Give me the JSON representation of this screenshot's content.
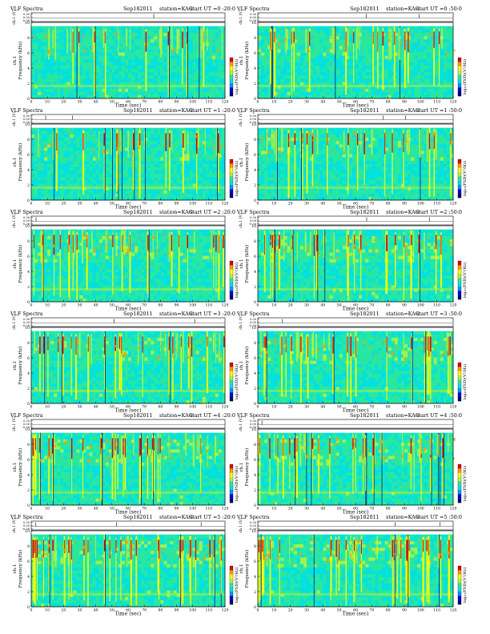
{
  "page": {
    "columns": 2,
    "rows": 6
  },
  "colormap": [
    "#00007a",
    "#0000e0",
    "#0096ff",
    "#00e0e0",
    "#2ce89a",
    "#b8f23a",
    "#ffff00",
    "#ff9a00",
    "#e00000"
  ],
  "common": {
    "label": "VLF Spectra",
    "date": "Sep182011",
    "station": "station=KAG",
    "start_prefix": "start",
    "channel_label": "ch.1",
    "channel_unit": "(V)",
    "ylabel": "Frequency (kHz)",
    "xlabel": "Time (sec)",
    "colorbar_label": "log₁₀(PSD)(V²/Hz)"
  },
  "chart_data": [
    {
      "type": "heatmap",
      "title_ut": "UT =0 :20:0",
      "x_ticks": [
        "0",
        "10",
        "20",
        "30",
        "40",
        "50",
        "60",
        "70",
        "80",
        "90",
        "100",
        "110",
        "120"
      ],
      "y_ticks": [
        "0",
        "2",
        "4",
        "6",
        "8",
        "10"
      ],
      "xlim": [
        0,
        120
      ],
      "ylim": [
        0,
        10
      ],
      "wave_ticks": [
        "0.30",
        "0.00",
        "-0.30"
      ],
      "wave_ylim": [
        -0.3,
        0.3
      ],
      "intensity": 0.35
    },
    {
      "type": "heatmap",
      "title_ut": "UT =0 :50:0",
      "x_ticks": [
        "0",
        "10",
        "20",
        "30",
        "40",
        "50",
        "60",
        "70",
        "80",
        "90",
        "100",
        "110",
        "120"
      ],
      "y_ticks": [
        "0",
        "2",
        "4",
        "6",
        "8",
        "10"
      ],
      "xlim": [
        0,
        120
      ],
      "ylim": [
        0,
        10
      ],
      "wave_ticks": [
        "0.30",
        "0.00",
        "-0.30"
      ],
      "wave_ylim": [
        -0.3,
        0.3
      ],
      "intensity": 0.45
    },
    {
      "type": "heatmap",
      "title_ut": "UT =1 :20:0",
      "x_ticks": [
        "0",
        "10",
        "20",
        "30",
        "40",
        "50",
        "60",
        "70",
        "80",
        "90",
        "100",
        "110",
        "120"
      ],
      "y_ticks": [
        "0",
        "2",
        "4",
        "6",
        "8",
        "10"
      ],
      "xlim": [
        0,
        120
      ],
      "ylim": [
        0,
        10
      ],
      "wave_ticks": [
        "0.30",
        "0.00",
        "-0.30"
      ],
      "wave_ylim": [
        -0.3,
        0.3
      ],
      "intensity": 0.4
    },
    {
      "type": "heatmap",
      "title_ut": "UT =1 :50:0",
      "x_ticks": [
        "0",
        "10",
        "20",
        "30",
        "40",
        "50",
        "60",
        "70",
        "80",
        "90",
        "100",
        "110",
        "120"
      ],
      "y_ticks": [
        "0",
        "2",
        "4",
        "6",
        "8",
        "10"
      ],
      "xlim": [
        0,
        120
      ],
      "ylim": [
        0,
        10
      ],
      "wave_ticks": [
        "0.30",
        "0.00",
        "-0.30"
      ],
      "wave_ylim": [
        -0.3,
        0.3
      ],
      "intensity": 0.45
    },
    {
      "type": "heatmap",
      "title_ut": "UT =2 :20:0",
      "x_ticks": [
        "0",
        "10",
        "20",
        "30",
        "40",
        "50",
        "60",
        "70",
        "80",
        "90",
        "100",
        "110",
        "120"
      ],
      "y_ticks": [
        "0",
        "2",
        "4",
        "6",
        "8",
        "10"
      ],
      "xlim": [
        0,
        120
      ],
      "ylim": [
        0,
        10
      ],
      "wave_ticks": [
        "0.30",
        "0.00",
        "-0.30"
      ],
      "wave_ylim": [
        -0.3,
        0.3
      ],
      "intensity": 0.55
    },
    {
      "type": "heatmap",
      "title_ut": "UT =2 :50:0",
      "x_ticks": [
        "0",
        "10",
        "20",
        "30",
        "40",
        "50",
        "60",
        "70",
        "80",
        "90",
        "100",
        "110",
        "120"
      ],
      "y_ticks": [
        "0",
        "2",
        "4",
        "6",
        "8",
        "10"
      ],
      "xlim": [
        0,
        120
      ],
      "ylim": [
        0,
        10
      ],
      "wave_ticks": [
        "0.30",
        "0.00",
        "-0.30"
      ],
      "wave_ylim": [
        -0.3,
        0.3
      ],
      "intensity": 0.6
    },
    {
      "type": "heatmap",
      "title_ut": "UT =3 :20:0",
      "x_ticks": [
        "0",
        "10",
        "20",
        "30",
        "40",
        "50",
        "60",
        "70",
        "80",
        "90",
        "100",
        "110",
        "120"
      ],
      "y_ticks": [
        "0",
        "2",
        "4",
        "6",
        "8",
        "10"
      ],
      "xlim": [
        0,
        120
      ],
      "ylim": [
        0,
        10
      ],
      "wave_ticks": [
        "0.30",
        "0.00",
        "-0.30"
      ],
      "wave_ylim": [
        -0.3,
        0.3
      ],
      "intensity": 0.5
    },
    {
      "type": "heatmap",
      "title_ut": "UT =3 :50:0",
      "x_ticks": [
        "0",
        "10",
        "20",
        "30",
        "40",
        "50",
        "60",
        "70",
        "80",
        "90",
        "100",
        "110",
        "120"
      ],
      "y_ticks": [
        "0",
        "2",
        "4",
        "6",
        "8",
        "10"
      ],
      "xlim": [
        0,
        120
      ],
      "ylim": [
        0,
        10
      ],
      "wave_ticks": [
        "0.30",
        "0.00",
        "-0.30"
      ],
      "wave_ylim": [
        -0.3,
        0.3
      ],
      "intensity": 0.55
    },
    {
      "type": "heatmap",
      "title_ut": "UT =4 :20:0",
      "x_ticks": [
        "0",
        "10",
        "20",
        "30",
        "40",
        "50",
        "60",
        "70",
        "80",
        "90",
        "100",
        "110",
        "120"
      ],
      "y_ticks": [
        "0",
        "2",
        "4",
        "6",
        "8",
        "10"
      ],
      "xlim": [
        0,
        120
      ],
      "ylim": [
        0,
        10
      ],
      "wave_ticks": [
        "0.30",
        "0.00",
        "-0.30"
      ],
      "wave_ylim": [
        -0.3,
        0.3
      ],
      "intensity": 0.6
    },
    {
      "type": "heatmap",
      "title_ut": "UT =4 :50:0",
      "x_ticks": [
        "0",
        "10",
        "20",
        "30",
        "40",
        "50",
        "60",
        "70",
        "80",
        "90",
        "100",
        "110",
        "120"
      ],
      "y_ticks": [
        "0",
        "2",
        "4",
        "6",
        "8",
        "10"
      ],
      "xlim": [
        0,
        120
      ],
      "ylim": [
        0,
        10
      ],
      "wave_ticks": [
        "0.30",
        "0.00",
        "-0.30"
      ],
      "wave_ylim": [
        -0.3,
        0.3
      ],
      "intensity": 0.6
    },
    {
      "type": "heatmap",
      "title_ut": "UT =5 :20:0",
      "x_ticks": [
        "0",
        "10",
        "20",
        "30",
        "40",
        "50",
        "60",
        "70",
        "80",
        "90",
        "100",
        "110",
        "120"
      ],
      "y_ticks": [
        "0",
        "2",
        "4",
        "6",
        "8",
        "10"
      ],
      "xlim": [
        0,
        120
      ],
      "ylim": [
        0,
        10
      ],
      "wave_ticks": [
        "0.30",
        "0.00",
        "-0.30"
      ],
      "wave_ylim": [
        -0.3,
        0.3
      ],
      "intensity": 0.7
    },
    {
      "type": "heatmap",
      "title_ut": "UT =5 :50:0",
      "x_ticks": [
        "0",
        "10",
        "20",
        "30",
        "40",
        "50",
        "60",
        "70",
        "80",
        "90",
        "100",
        "110",
        "120"
      ],
      "y_ticks": [
        "0",
        "2",
        "4",
        "6",
        "8",
        "10"
      ],
      "xlim": [
        0,
        120
      ],
      "ylim": [
        0,
        10
      ],
      "wave_ticks": [
        "0.30",
        "0.00",
        "-0.30"
      ],
      "wave_ylim": [
        -0.3,
        0.3
      ],
      "intensity": 0.7
    }
  ]
}
